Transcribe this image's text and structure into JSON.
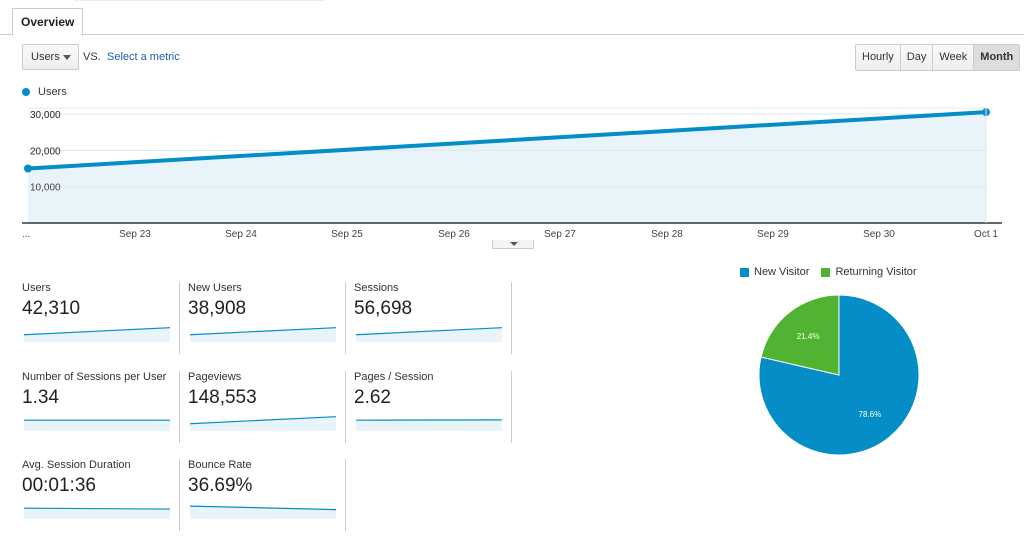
{
  "tabs": [
    {
      "label": "Overview"
    }
  ],
  "controls": {
    "metric_select": "Users",
    "vs_label": "VS.",
    "select_metric_link": "Select a metric",
    "time_buttons": [
      {
        "label": "Hourly",
        "active": false
      },
      {
        "label": "Day",
        "active": false
      },
      {
        "label": "Week",
        "active": false
      },
      {
        "label": "Month",
        "active": true
      }
    ]
  },
  "colors": {
    "primary": "#058dc7",
    "secondary": "#50b432"
  },
  "chart_data": [
    {
      "type": "area",
      "series": [
        {
          "name": "Users",
          "values": [
            15000,
            30500
          ]
        }
      ],
      "x": [
        "...",
        "Oct 1"
      ],
      "x_ticks": [
        "...",
        "Sep 23",
        "Sep 24",
        "Sep 25",
        "Sep 26",
        "Sep 27",
        "Sep 28",
        "Sep 29",
        "Sep 30",
        "Oct 1"
      ],
      "y_ticks": [
        "30,000",
        "20,000",
        "10,000"
      ],
      "ylim": [
        0,
        30000
      ],
      "grid": true,
      "legend": "top-left"
    },
    {
      "type": "pie",
      "categories": [
        "New Visitor",
        "Returning Visitor"
      ],
      "values": [
        78.6,
        21.4
      ],
      "labels": [
        "78.6%",
        "21.4%"
      ],
      "colors": [
        "#058dc7",
        "#50b432"
      ],
      "legend": "top"
    }
  ],
  "metrics": [
    {
      "label": "Users",
      "value": "42,310",
      "trend": [
        0.3,
        0.7
      ]
    },
    {
      "label": "New Users",
      "value": "38,908",
      "trend": [
        0.3,
        0.7
      ]
    },
    {
      "label": "Sessions",
      "value": "56,698",
      "trend": [
        0.3,
        0.7
      ]
    },
    {
      "label": "Number of Sessions per User",
      "value": "1.34",
      "trend": [
        0.5,
        0.5
      ]
    },
    {
      "label": "Pageviews",
      "value": "148,553",
      "trend": [
        0.3,
        0.7
      ]
    },
    {
      "label": "Pages / Session",
      "value": "2.62",
      "trend": [
        0.5,
        0.52
      ]
    },
    {
      "label": "Avg. Session Duration",
      "value": "00:01:36",
      "trend": [
        0.5,
        0.45
      ]
    },
    {
      "label": "Bounce Rate",
      "value": "36.69%",
      "trend": [
        0.62,
        0.42
      ]
    }
  ]
}
